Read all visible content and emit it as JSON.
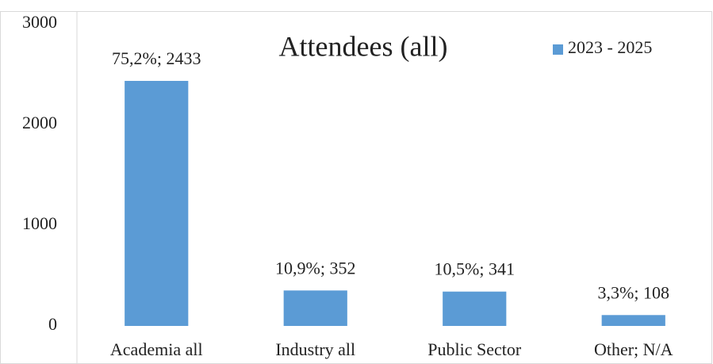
{
  "chart_data": {
    "type": "bar",
    "title": "Attendees  (all)",
    "categories": [
      "Academia all",
      "Industry all",
      "Public Sector",
      "Other; N/A"
    ],
    "series": [
      {
        "name": "2023 - 2025",
        "color": "#5b9bd5",
        "values": [
          2433,
          352,
          341,
          108
        ],
        "value_labels": [
          "75,2%; 2433",
          "10,9%; 352",
          "10,5%; 341",
          "3,3%; 108"
        ]
      }
    ],
    "ylim": [
      0,
      3000
    ],
    "yticks": [
      0,
      1000,
      2000,
      3000
    ],
    "grid": false,
    "legend": "top-right"
  }
}
